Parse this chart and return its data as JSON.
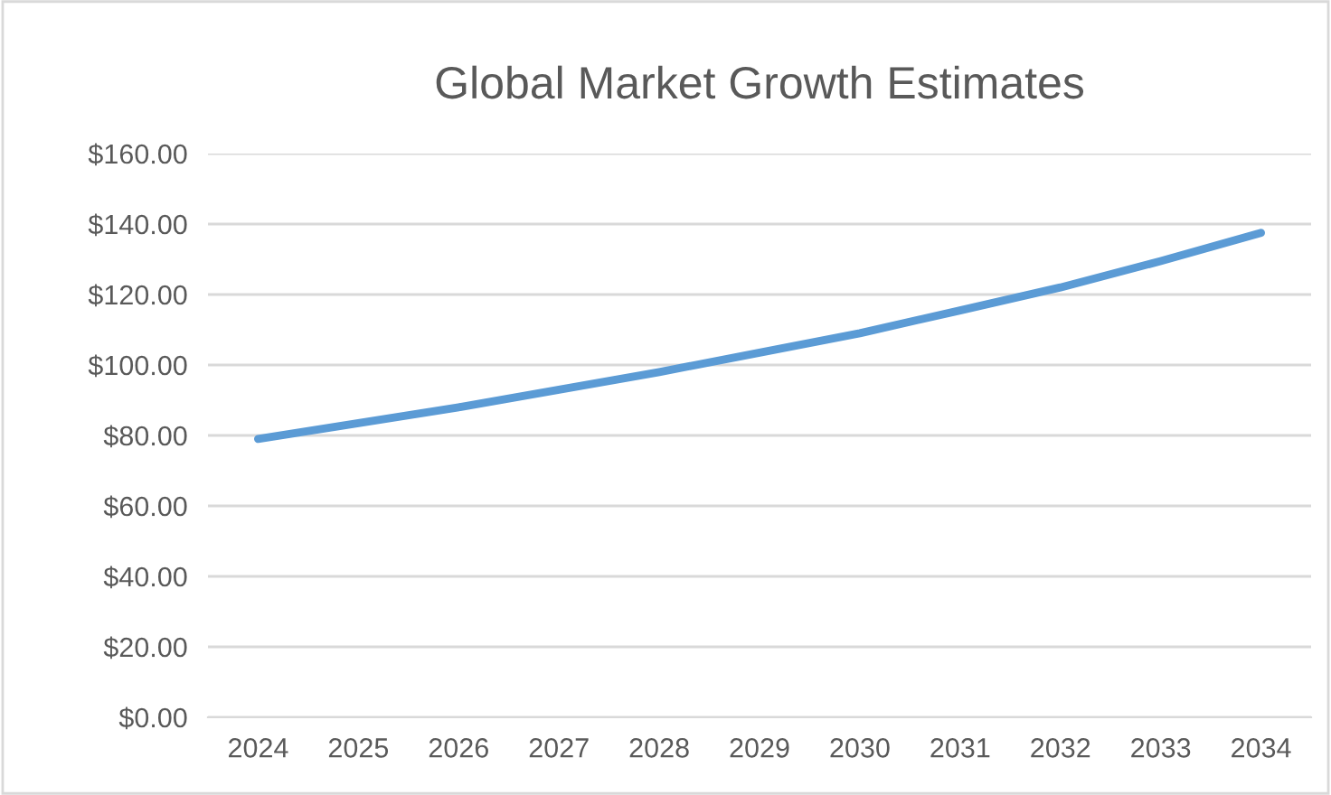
{
  "chart_data": {
    "type": "line",
    "title": "Global Market Growth Estimates",
    "categories": [
      "2024",
      "2025",
      "2026",
      "2027",
      "2028",
      "2029",
      "2030",
      "2031",
      "2032",
      "2033",
      "2034"
    ],
    "series": [
      {
        "color": "#5b9bd5",
        "values": [
          79,
          83.5,
          88,
          93,
          98,
          103.5,
          109,
          115.5,
          122,
          129.5,
          137.5
        ]
      }
    ],
    "ylim": [
      0,
      160
    ],
    "yticks": [
      {
        "value": 0,
        "label": "$0.00"
      },
      {
        "value": 20,
        "label": "$20.00"
      },
      {
        "value": 40,
        "label": "$40.00"
      },
      {
        "value": 60,
        "label": "$60.00"
      },
      {
        "value": 80,
        "label": "$80.00"
      },
      {
        "value": 100,
        "label": "$100.00"
      },
      {
        "value": 120,
        "label": "$120.00"
      },
      {
        "value": 140,
        "label": "$140.00"
      },
      {
        "value": 160,
        "label": "$160.00"
      }
    ],
    "grid": "y",
    "marker": "none",
    "line_style": "solid"
  }
}
